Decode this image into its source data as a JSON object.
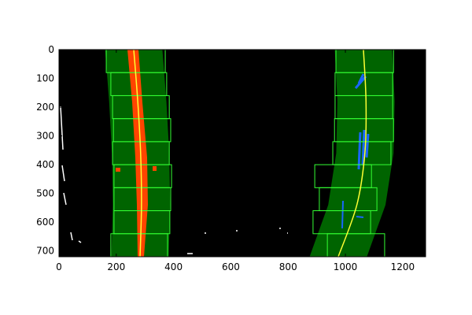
{
  "chart_data": {
    "type": "image",
    "xlim": [
      0,
      1280
    ],
    "ylim": [
      720,
      0
    ],
    "xticks": [
      0,
      200,
      400,
      600,
      800,
      1000,
      1200
    ],
    "yticks": [
      0,
      100,
      200,
      300,
      400,
      500,
      600,
      700
    ],
    "background": "#000000",
    "band_color": "#006400",
    "margin": 100,
    "fits": [
      {
        "color": "#ffff33",
        "y": [
          0,
          180,
          360,
          540,
          720
        ],
        "x": [
          261,
          275,
          285,
          288,
          283
        ]
      },
      {
        "color": "#ffff33",
        "y": [
          0,
          180,
          360,
          540,
          720
        ],
        "x": [
          1063,
          1072,
          1068,
          1040,
          975
        ]
      }
    ],
    "window_color": "#33ff33",
    "windows": [
      {
        "x": [
          165,
          371
        ],
        "y": [
          0,
          80
        ]
      },
      {
        "x": [
          181,
          376
        ],
        "y": [
          80,
          160
        ]
      },
      {
        "x": [
          187,
          385
        ],
        "y": [
          160,
          240
        ]
      },
      {
        "x": [
          190,
          390
        ],
        "y": [
          240,
          320
        ]
      },
      {
        "x": [
          187,
          385
        ],
        "y": [
          320,
          400
        ]
      },
      {
        "x": [
          192,
          393
        ],
        "y": [
          400,
          480
        ]
      },
      {
        "x": [
          192,
          390
        ],
        "y": [
          480,
          560
        ]
      },
      {
        "x": [
          192,
          387
        ],
        "y": [
          560,
          640
        ]
      },
      {
        "x": [
          181,
          379
        ],
        "y": [
          640,
          720
        ]
      },
      {
        "x": [
          967,
          1168
        ],
        "y": [
          0,
          80
        ]
      },
      {
        "x": [
          964,
          1165
        ],
        "y": [
          80,
          160
        ]
      },
      {
        "x": [
          964,
          1165
        ],
        "y": [
          160,
          240
        ]
      },
      {
        "x": [
          962,
          1168
        ],
        "y": [
          240,
          320
        ]
      },
      {
        "x": [
          956,
          1159
        ],
        "y": [
          320,
          400
        ]
      },
      {
        "x": [
          893,
          1091
        ],
        "y": [
          400,
          480
        ]
      },
      {
        "x": [
          909,
          1110
        ],
        "y": [
          480,
          560
        ]
      },
      {
        "x": [
          887,
          1088
        ],
        "y": [
          560,
          640
        ]
      },
      {
        "x": [
          937,
          1137
        ],
        "y": [
          640,
          720
        ]
      }
    ]
  }
}
